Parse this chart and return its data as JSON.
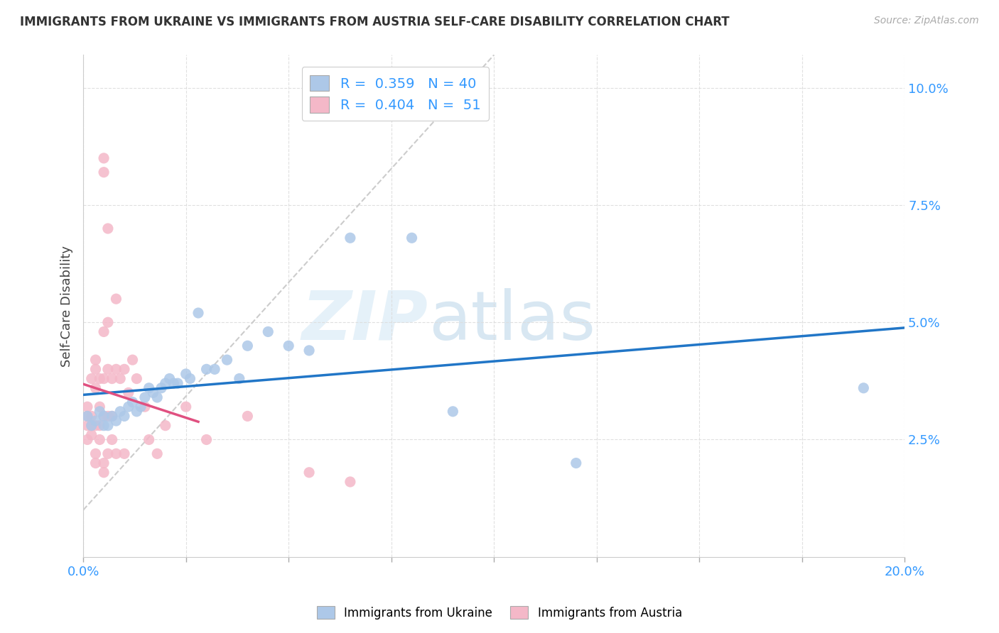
{
  "title": "IMMIGRANTS FROM UKRAINE VS IMMIGRANTS FROM AUSTRIA SELF-CARE DISABILITY CORRELATION CHART",
  "source": "Source: ZipAtlas.com",
  "ylabel": "Self-Care Disability",
  "ytick_labels": [
    "2.5%",
    "5.0%",
    "7.5%",
    "10.0%"
  ],
  "ytick_values": [
    0.025,
    0.05,
    0.075,
    0.1
  ],
  "xlim": [
    0.0,
    0.2
  ],
  "ylim": [
    0.0,
    0.107
  ],
  "ukraine_color": "#adc8e8",
  "austria_color": "#f4b8c8",
  "ukraine_line_color": "#2176c7",
  "austria_line_color": "#e05080",
  "diagonal_color": "#cccccc",
  "watermark_zip": "ZIP",
  "watermark_atlas": "atlas",
  "background_color": "#ffffff",
  "grid_color": "#dddddd",
  "ukraine_points": [
    [
      0.001,
      0.03
    ],
    [
      0.002,
      0.028
    ],
    [
      0.003,
      0.029
    ],
    [
      0.004,
      0.031
    ],
    [
      0.005,
      0.03
    ],
    [
      0.005,
      0.028
    ],
    [
      0.006,
      0.028
    ],
    [
      0.007,
      0.03
    ],
    [
      0.008,
      0.029
    ],
    [
      0.009,
      0.031
    ],
    [
      0.01,
      0.03
    ],
    [
      0.011,
      0.032
    ],
    [
      0.012,
      0.033
    ],
    [
      0.013,
      0.031
    ],
    [
      0.014,
      0.032
    ],
    [
      0.015,
      0.034
    ],
    [
      0.016,
      0.036
    ],
    [
      0.017,
      0.035
    ],
    [
      0.018,
      0.034
    ],
    [
      0.019,
      0.036
    ],
    [
      0.02,
      0.037
    ],
    [
      0.021,
      0.038
    ],
    [
      0.022,
      0.037
    ],
    [
      0.023,
      0.037
    ],
    [
      0.025,
      0.039
    ],
    [
      0.026,
      0.038
    ],
    [
      0.028,
      0.052
    ],
    [
      0.03,
      0.04
    ],
    [
      0.032,
      0.04
    ],
    [
      0.035,
      0.042
    ],
    [
      0.038,
      0.038
    ],
    [
      0.04,
      0.045
    ],
    [
      0.045,
      0.048
    ],
    [
      0.05,
      0.045
    ],
    [
      0.055,
      0.044
    ],
    [
      0.065,
      0.068
    ],
    [
      0.08,
      0.068
    ],
    [
      0.09,
      0.031
    ],
    [
      0.12,
      0.02
    ],
    [
      0.19,
      0.036
    ]
  ],
  "austria_points": [
    [
      0.001,
      0.03
    ],
    [
      0.001,
      0.032
    ],
    [
      0.001,
      0.028
    ],
    [
      0.001,
      0.025
    ],
    [
      0.002,
      0.038
    ],
    [
      0.002,
      0.03
    ],
    [
      0.002,
      0.028
    ],
    [
      0.002,
      0.026
    ],
    [
      0.003,
      0.042
    ],
    [
      0.003,
      0.04
    ],
    [
      0.003,
      0.036
    ],
    [
      0.003,
      0.028
    ],
    [
      0.003,
      0.022
    ],
    [
      0.003,
      0.02
    ],
    [
      0.004,
      0.038
    ],
    [
      0.004,
      0.032
    ],
    [
      0.004,
      0.028
    ],
    [
      0.004,
      0.025
    ],
    [
      0.005,
      0.085
    ],
    [
      0.005,
      0.082
    ],
    [
      0.005,
      0.048
    ],
    [
      0.005,
      0.038
    ],
    [
      0.005,
      0.03
    ],
    [
      0.005,
      0.02
    ],
    [
      0.005,
      0.018
    ],
    [
      0.006,
      0.07
    ],
    [
      0.006,
      0.05
    ],
    [
      0.006,
      0.04
    ],
    [
      0.006,
      0.03
    ],
    [
      0.006,
      0.022
    ],
    [
      0.007,
      0.038
    ],
    [
      0.007,
      0.03
    ],
    [
      0.007,
      0.025
    ],
    [
      0.008,
      0.055
    ],
    [
      0.008,
      0.04
    ],
    [
      0.008,
      0.022
    ],
    [
      0.009,
      0.038
    ],
    [
      0.01,
      0.04
    ],
    [
      0.01,
      0.022
    ],
    [
      0.011,
      0.035
    ],
    [
      0.012,
      0.042
    ],
    [
      0.013,
      0.038
    ],
    [
      0.015,
      0.032
    ],
    [
      0.016,
      0.025
    ],
    [
      0.018,
      0.022
    ],
    [
      0.02,
      0.028
    ],
    [
      0.025,
      0.032
    ],
    [
      0.03,
      0.025
    ],
    [
      0.04,
      0.03
    ],
    [
      0.055,
      0.018
    ],
    [
      0.065,
      0.016
    ]
  ]
}
